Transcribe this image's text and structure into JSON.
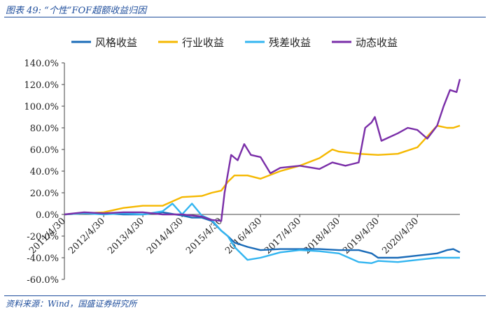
{
  "figure": {
    "title": "图表 49:  “个性”FOF超额收益归因",
    "source": "资料来源：Wind，国盛证券研究所"
  },
  "chart_data": {
    "type": "line",
    "xlabel": "",
    "ylabel": "",
    "ylim": [
      -0.6,
      1.4
    ],
    "yticks": [
      "-60.0%",
      "-40.0%",
      "-20.0%",
      "0.0%",
      "20.0%",
      "40.0%",
      "60.0%",
      "80.0%",
      "100.0%",
      "120.0%",
      "140.0%"
    ],
    "xticks": [
      "2011/4/30",
      "2012/4/30",
      "2013/4/30",
      "2014/4/30",
      "2015/4/30",
      "2016/4/30",
      "2017/4/30",
      "2018/4/30",
      "2019/4/30",
      "2020/4/30"
    ],
    "xrange": [
      "2011/4/30",
      "2021/5/31"
    ],
    "legend_position": "top",
    "grid": false,
    "series": [
      {
        "name": "风格收益",
        "color": "#1a6bb8",
        "points": [
          [
            "2011/4/30",
            0
          ],
          [
            "2011/10/31",
            0.01
          ],
          [
            "2012/4/30",
            0.01
          ],
          [
            "2012/10/31",
            0.0
          ],
          [
            "2013/4/30",
            0.0
          ],
          [
            "2013/10/31",
            0.02
          ],
          [
            "2014/4/30",
            -0.01
          ],
          [
            "2014/7/31",
            -0.03
          ],
          [
            "2014/10/31",
            -0.03
          ],
          [
            "2015/1/31",
            -0.06
          ],
          [
            "2015/4/30",
            -0.15
          ],
          [
            "2015/6/30",
            -0.2
          ],
          [
            "2015/8/31",
            -0.26
          ],
          [
            "2015/12/31",
            -0.3
          ],
          [
            "2016/4/30",
            -0.33
          ],
          [
            "2016/10/31",
            -0.32
          ],
          [
            "2017/4/30",
            -0.32
          ],
          [
            "2017/10/31",
            -0.32
          ],
          [
            "2018/4/30",
            -0.33
          ],
          [
            "2018/10/31",
            -0.33
          ],
          [
            "2019/2/28",
            -0.36
          ],
          [
            "2019/4/30",
            -0.4
          ],
          [
            "2019/10/31",
            -0.4
          ],
          [
            "2020/4/30",
            -0.38
          ],
          [
            "2020/10/31",
            -0.36
          ],
          [
            "2021/1/31",
            -0.33
          ],
          [
            "2021/3/31",
            -0.32
          ],
          [
            "2021/5/31",
            -0.35
          ]
        ]
      },
      {
        "name": "行业收益",
        "color": "#f5b800",
        "points": [
          [
            "2011/4/30",
            0
          ],
          [
            "2011/10/31",
            0.01
          ],
          [
            "2012/4/30",
            0.02
          ],
          [
            "2012/10/31",
            0.06
          ],
          [
            "2013/4/30",
            0.08
          ],
          [
            "2013/10/31",
            0.08
          ],
          [
            "2014/4/30",
            0.16
          ],
          [
            "2014/10/31",
            0.17
          ],
          [
            "2015/1/31",
            0.2
          ],
          [
            "2015/4/30",
            0.22
          ],
          [
            "2015/6/30",
            0.3
          ],
          [
            "2015/8/31",
            0.36
          ],
          [
            "2015/12/31",
            0.36
          ],
          [
            "2016/4/30",
            0.33
          ],
          [
            "2016/10/31",
            0.4
          ],
          [
            "2017/4/30",
            0.45
          ],
          [
            "2017/10/31",
            0.52
          ],
          [
            "2018/2/28",
            0.6
          ],
          [
            "2018/4/30",
            0.58
          ],
          [
            "2018/10/31",
            0.56
          ],
          [
            "2019/4/30",
            0.55
          ],
          [
            "2019/10/31",
            0.56
          ],
          [
            "2020/4/30",
            0.62
          ],
          [
            "2020/7/31",
            0.72
          ],
          [
            "2020/10/31",
            0.82
          ],
          [
            "2021/1/31",
            0.8
          ],
          [
            "2021/3/31",
            0.8
          ],
          [
            "2021/5/31",
            0.82
          ]
        ]
      },
      {
        "name": "残差收益",
        "color": "#33b5f0",
        "points": [
          [
            "2011/4/30",
            0
          ],
          [
            "2011/10/31",
            0.01
          ],
          [
            "2012/4/30",
            0.0
          ],
          [
            "2012/10/31",
            0.01
          ],
          [
            "2013/4/30",
            0.0
          ],
          [
            "2013/10/31",
            0.03
          ],
          [
            "2014/1/31",
            0.1
          ],
          [
            "2014/4/30",
            0.0
          ],
          [
            "2014/7/31",
            0.1
          ],
          [
            "2014/10/31",
            -0.01
          ],
          [
            "2015/1/31",
            -0.05
          ],
          [
            "2015/4/30",
            -0.15
          ],
          [
            "2015/6/30",
            -0.2
          ],
          [
            "2015/8/31",
            -0.3
          ],
          [
            "2015/12/31",
            -0.42
          ],
          [
            "2016/4/30",
            -0.4
          ],
          [
            "2016/10/31",
            -0.35
          ],
          [
            "2017/4/30",
            -0.33
          ],
          [
            "2017/10/31",
            -0.34
          ],
          [
            "2018/4/30",
            -0.36
          ],
          [
            "2018/10/31",
            -0.44
          ],
          [
            "2019/2/28",
            -0.45
          ],
          [
            "2019/4/30",
            -0.43
          ],
          [
            "2019/10/31",
            -0.44
          ],
          [
            "2020/4/30",
            -0.42
          ],
          [
            "2020/10/31",
            -0.4
          ],
          [
            "2021/1/31",
            -0.4
          ],
          [
            "2021/5/31",
            -0.4
          ]
        ]
      },
      {
        "name": "动态收益",
        "color": "#7a2ea8",
        "points": [
          [
            "2011/4/30",
            0
          ],
          [
            "2011/10/31",
            0.02
          ],
          [
            "2012/4/30",
            0.01
          ],
          [
            "2012/10/31",
            0.02
          ],
          [
            "2013/4/30",
            0.02
          ],
          [
            "2013/10/31",
            0.0
          ],
          [
            "2014/4/30",
            0.0
          ],
          [
            "2014/10/31",
            -0.02
          ],
          [
            "2015/1/31",
            -0.05
          ],
          [
            "2015/4/30",
            -0.06
          ],
          [
            "2015/5/31",
            0.2
          ],
          [
            "2015/7/31",
            0.55
          ],
          [
            "2015/9/30",
            0.5
          ],
          [
            "2015/11/30",
            0.65
          ],
          [
            "2016/1/31",
            0.55
          ],
          [
            "2016/4/30",
            0.53
          ],
          [
            "2016/7/31",
            0.38
          ],
          [
            "2016/10/31",
            0.43
          ],
          [
            "2017/4/30",
            0.45
          ],
          [
            "2017/10/31",
            0.42
          ],
          [
            "2018/2/28",
            0.48
          ],
          [
            "2018/6/30",
            0.45
          ],
          [
            "2018/10/31",
            0.48
          ],
          [
            "2018/12/31",
            0.8
          ],
          [
            "2019/2/28",
            0.85
          ],
          [
            "2019/3/31",
            0.9
          ],
          [
            "2019/5/31",
            0.68
          ],
          [
            "2019/10/31",
            0.75
          ],
          [
            "2020/1/31",
            0.8
          ],
          [
            "2020/4/30",
            0.78
          ],
          [
            "2020/7/31",
            0.7
          ],
          [
            "2020/10/31",
            0.82
          ],
          [
            "2020/12/31",
            1.0
          ],
          [
            "2021/2/28",
            1.15
          ],
          [
            "2021/4/30",
            1.13
          ],
          [
            "2021/5/31",
            1.25
          ]
        ]
      }
    ]
  }
}
